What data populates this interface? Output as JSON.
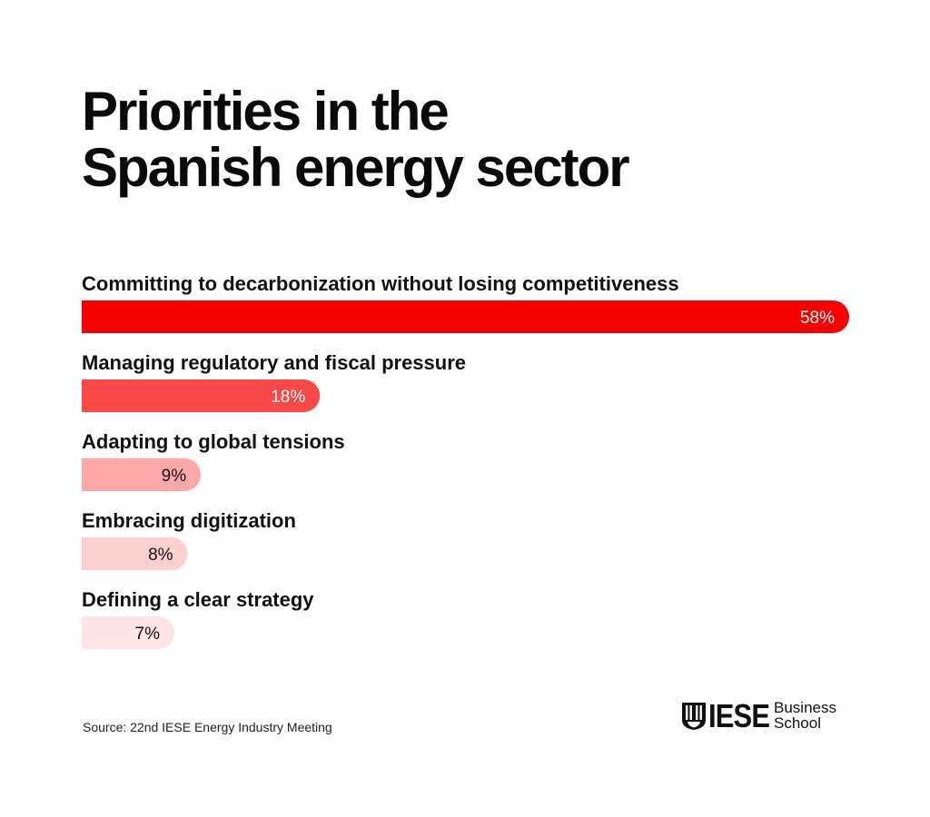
{
  "title_lines": [
    "Priorities in the",
    "Spanish energy sector"
  ],
  "chart_data": {
    "type": "bar",
    "orientation": "horizontal",
    "categories": [
      "Committing to decarbonization without losing competitiveness",
      "Managing regulatory and fiscal pressure",
      "Adapting to global tensions",
      "Embracing digitization",
      "Defining a clear strategy"
    ],
    "values": [
      58,
      18,
      9,
      8,
      7
    ],
    "value_labels": [
      "58%",
      "18%",
      "9%",
      "8%",
      "7%"
    ],
    "unit": "%",
    "bar_colors": [
      "#f80000",
      "#f84848",
      "#fca8a8",
      "#fdd0d0",
      "#fee4e4"
    ],
    "value_label_colors": [
      "#ffffff",
      "#ffffff",
      "#111111",
      "#111111",
      "#111111"
    ],
    "xlim": [
      0,
      58
    ],
    "grid": false,
    "legend": "none"
  },
  "source": "Source: 22nd IESE Energy Industry Meeting",
  "logo": {
    "name": "IESE",
    "sub_lines": [
      "Business",
      "School"
    ],
    "icon": "iese-crest-icon"
  }
}
